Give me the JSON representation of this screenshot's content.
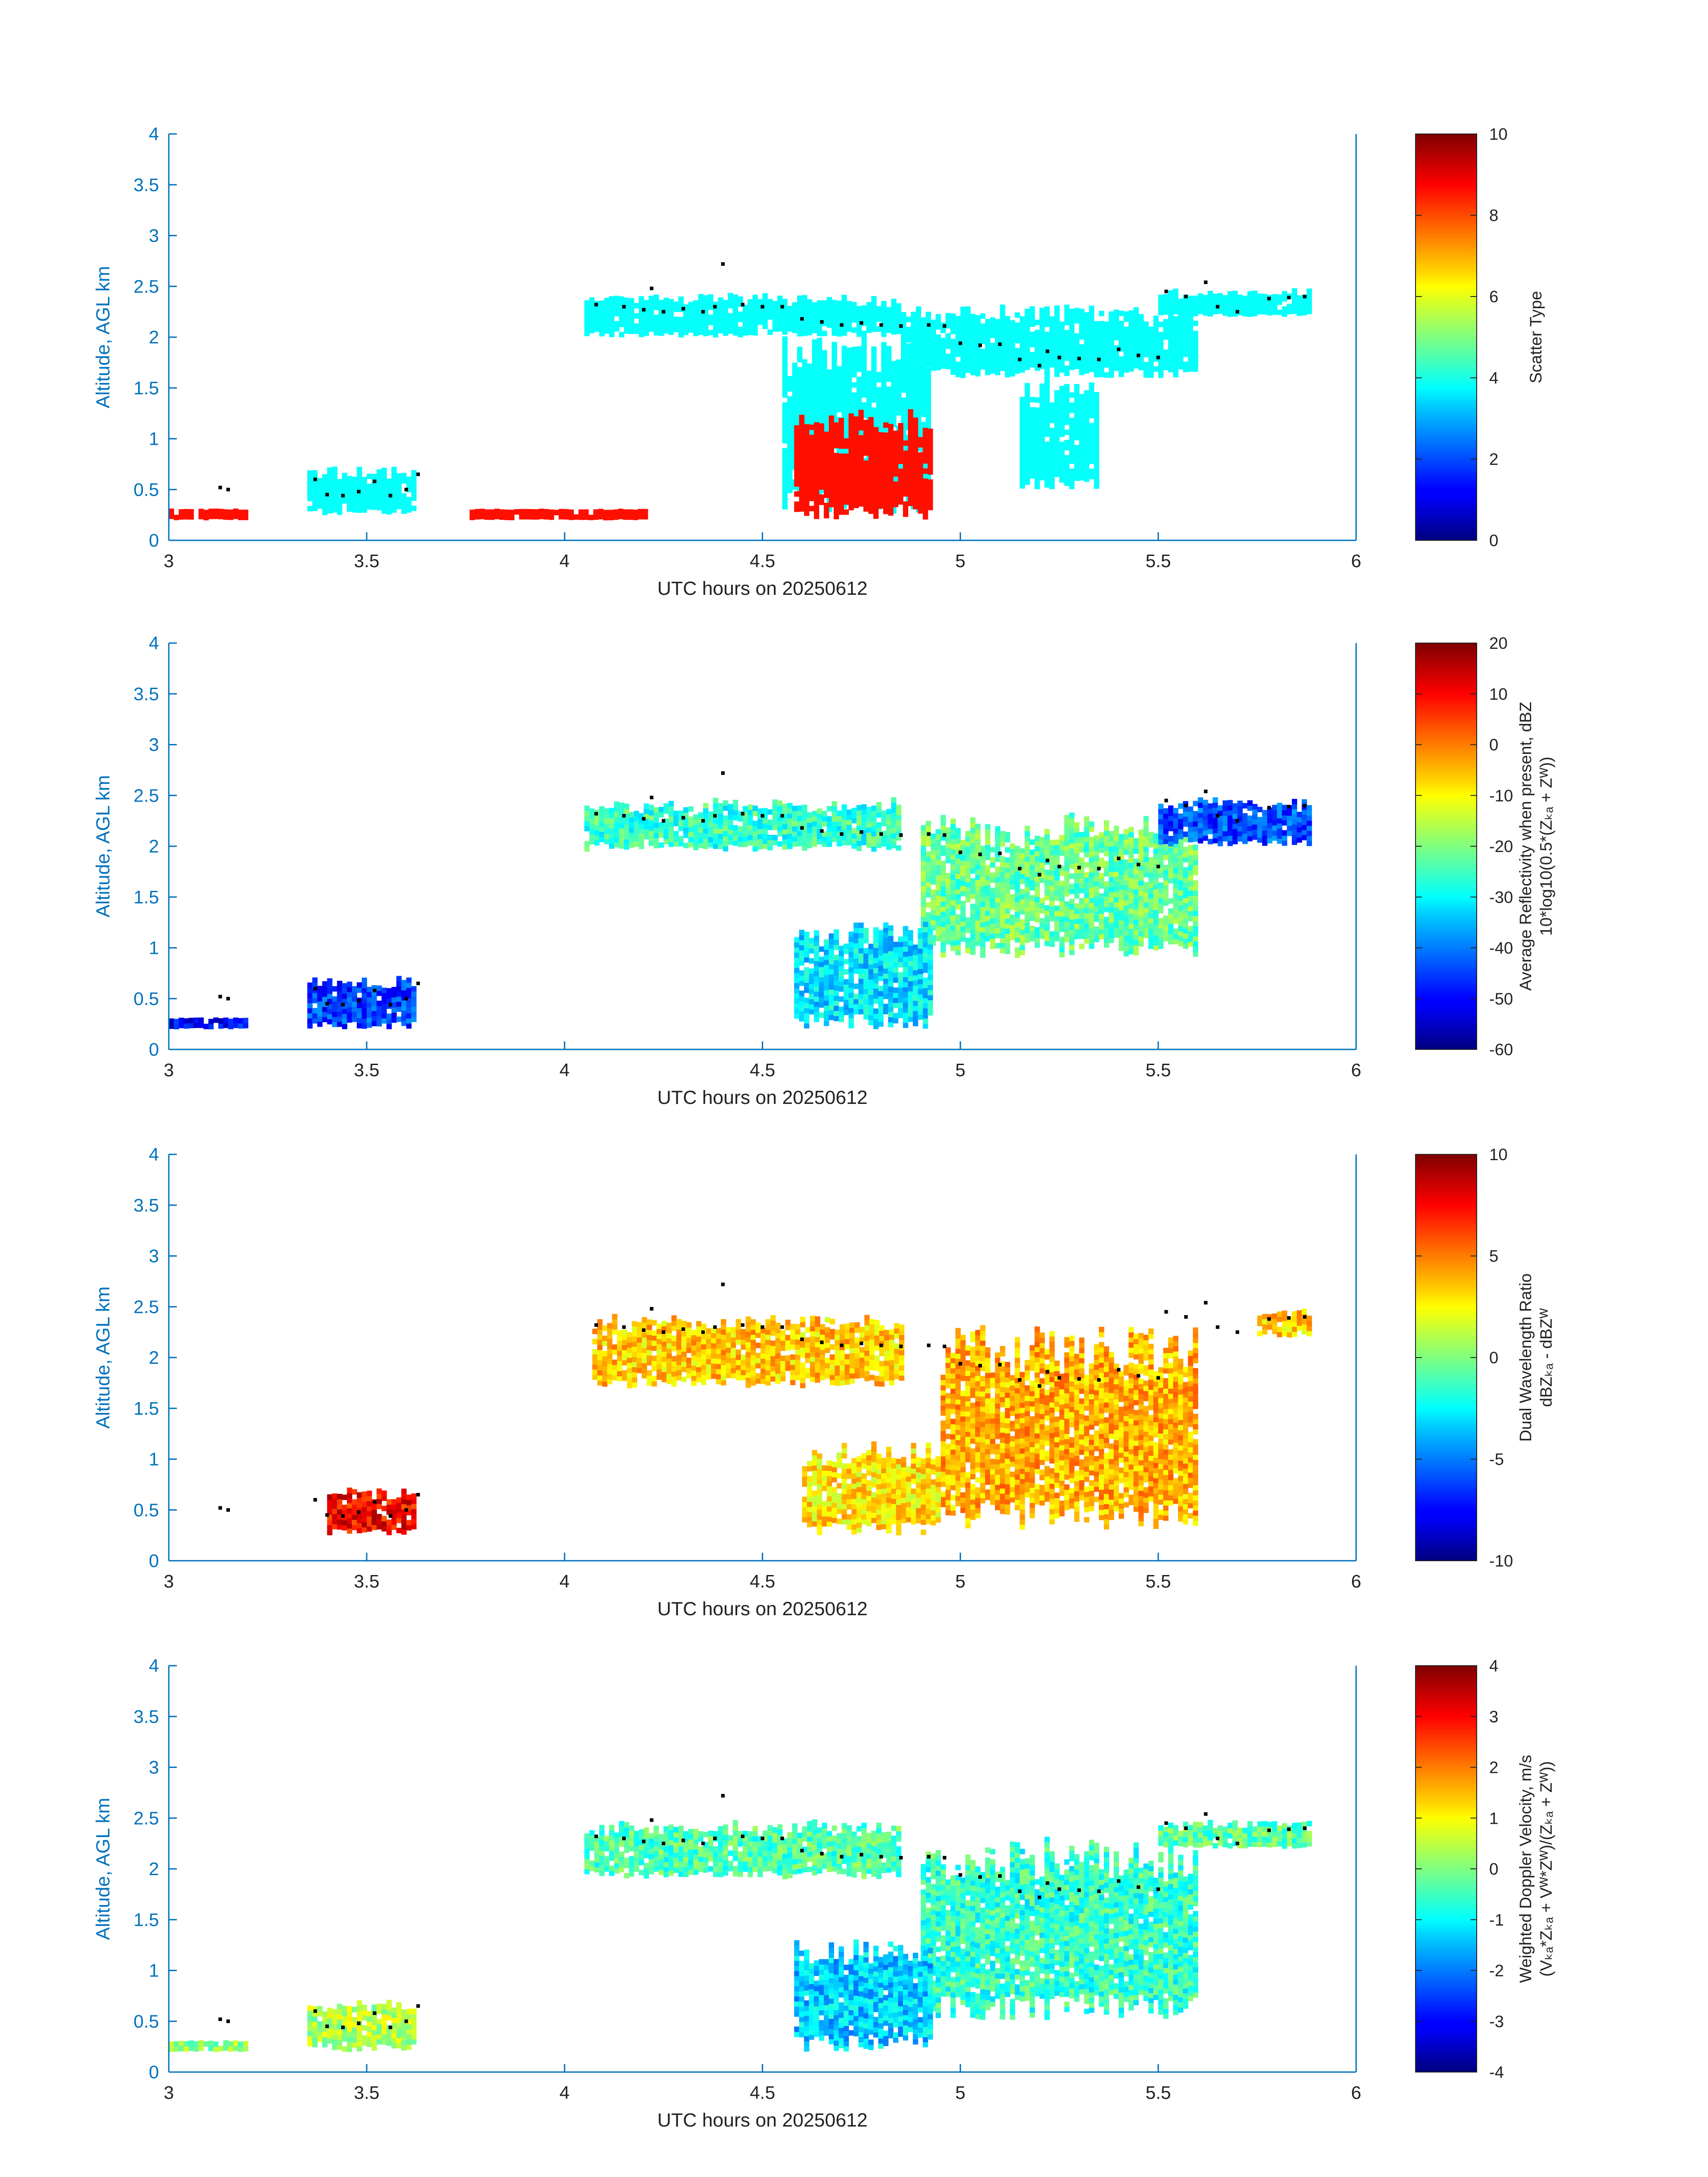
{
  "chart_data": [
    {
      "type": "heatmap",
      "id": "scatter_type",
      "xlabel": "UTC hours on 20250612",
      "ylabel": "Altitude, AGL km",
      "xlim": [
        3,
        6
      ],
      "ylim": [
        0,
        4
      ],
      "xticks": [
        "3",
        "3.5",
        "4",
        "4.5",
        "5",
        "5.5",
        "6"
      ],
      "yticks": [
        "0",
        "0.5",
        "1",
        "1.5",
        "2",
        "2.5",
        "3",
        "3.5",
        "4"
      ],
      "colorbar": {
        "label": [
          "Scatter Type"
        ],
        "range": [
          0,
          10
        ],
        "ticks": [
          "0",
          "2",
          "4",
          "6",
          "8",
          "10"
        ]
      },
      "fields": [
        {
          "kind": "cloud",
          "value": 3.8,
          "t0": 4.05,
          "t1": 4.85,
          "zbot": 2.0,
          "ztop": 2.4
        },
        {
          "kind": "cloud",
          "value": 3.8,
          "t0": 4.85,
          "t1": 5.6,
          "zbot": 1.6,
          "ztop": 2.3
        },
        {
          "kind": "cloud",
          "value": 3.8,
          "t0": 5.15,
          "t1": 5.35,
          "zbot": 0.5,
          "ztop": 1.6
        },
        {
          "kind": "cloud",
          "value": 3.8,
          "t0": 4.55,
          "t1": 4.92,
          "zbot": 0.25,
          "ztop": 2.0
        },
        {
          "kind": "cloud",
          "value": 3.8,
          "t0": 3.35,
          "t1": 3.62,
          "zbot": 0.25,
          "ztop": 0.7
        },
        {
          "kind": "cloud",
          "value": 8.6,
          "t0": 4.58,
          "t1": 4.93,
          "zbot": 0.2,
          "ztop": 1.25
        },
        {
          "kind": "cloud",
          "value": 8.6,
          "t0": 3.0,
          "t1": 3.2,
          "zbot": 0.2,
          "ztop": 0.3
        },
        {
          "kind": "cloud",
          "value": 8.6,
          "t0": 3.76,
          "t1": 4.2,
          "zbot": 0.2,
          "ztop": 0.28
        },
        {
          "kind": "cloud",
          "value": 3.8,
          "t0": 5.5,
          "t1": 5.88,
          "zbot": 2.2,
          "ztop": 2.45
        }
      ]
    },
    {
      "type": "heatmap",
      "id": "reflectivity",
      "xlabel": "UTC hours on 20250612",
      "ylabel": "Altitude, AGL km",
      "xlim": [
        3,
        6
      ],
      "ylim": [
        0,
        4
      ],
      "xticks": [
        "3",
        "3.5",
        "4",
        "4.5",
        "5",
        "5.5",
        "6"
      ],
      "yticks": [
        "0",
        "0.5",
        "1",
        "1.5",
        "2",
        "2.5",
        "3",
        "3.5",
        "4"
      ],
      "colorbar": {
        "label": [
          "Average Reflectivity when present, dBZ",
          "10*log10(0.5*(Zₖₐ + Zᵂ))"
        ],
        "range": [
          -60,
          20
        ],
        "ticks": [
          "-60",
          "-50",
          "-40",
          "-30",
          "-20",
          "-10",
          "0",
          "10",
          "20"
        ]
      },
      "fields": [
        {
          "kind": "cloud",
          "value": -26,
          "t0": 4.05,
          "t1": 4.85,
          "zbot": 1.95,
          "ztop": 2.45
        },
        {
          "kind": "cloud",
          "value": -22,
          "t0": 4.9,
          "t1": 5.6,
          "zbot": 0.9,
          "ztop": 2.3
        },
        {
          "kind": "cloud",
          "value": -32,
          "t0": 4.58,
          "t1": 4.93,
          "zbot": 0.2,
          "ztop": 1.25
        },
        {
          "kind": "cloud",
          "value": -45,
          "t0": 3.35,
          "t1": 3.62,
          "zbot": 0.2,
          "ztop": 0.7
        },
        {
          "kind": "cloud",
          "value": -50,
          "t0": 3.0,
          "t1": 3.2,
          "zbot": 0.2,
          "ztop": 0.3
        },
        {
          "kind": "cloud",
          "value": -44,
          "t0": 5.5,
          "t1": 5.88,
          "zbot": 2.0,
          "ztop": 2.45
        }
      ]
    },
    {
      "type": "heatmap",
      "id": "dual_wavelength_ratio",
      "xlabel": "UTC hours on 20250612",
      "ylabel": "Altitude, AGL km",
      "xlim": [
        3,
        6
      ],
      "ylim": [
        0,
        4
      ],
      "xticks": [
        "3",
        "3.5",
        "4",
        "4.5",
        "5",
        "5.5",
        "6"
      ],
      "yticks": [
        "0",
        "0.5",
        "1",
        "1.5",
        "2",
        "2.5",
        "3",
        "3.5",
        "4"
      ],
      "colorbar": {
        "label": [
          "Dual Wavelength Ratio",
          "dBZₖₐ - dBZᵂ"
        ],
        "range": [
          -10,
          10
        ],
        "ticks": [
          "-10",
          "-5",
          "0",
          "5",
          "10"
        ]
      },
      "fields": [
        {
          "kind": "cloud",
          "value": 3.5,
          "t0": 4.07,
          "t1": 4.85,
          "zbot": 1.7,
          "ztop": 2.4
        },
        {
          "kind": "cloud",
          "value": 4.0,
          "t0": 4.95,
          "t1": 5.6,
          "zbot": 0.3,
          "ztop": 2.3
        },
        {
          "kind": "cloud",
          "value": 3.0,
          "t0": 4.6,
          "t1": 4.95,
          "zbot": 0.25,
          "ztop": 1.15
        },
        {
          "kind": "cloud",
          "value": 7.5,
          "t0": 3.4,
          "t1": 3.62,
          "zbot": 0.25,
          "ztop": 0.7
        },
        {
          "kind": "cloud",
          "value": 3.5,
          "t0": 5.75,
          "t1": 5.88,
          "zbot": 2.2,
          "ztop": 2.45
        }
      ]
    },
    {
      "type": "heatmap",
      "id": "doppler_velocity",
      "xlabel": "UTC hours on 20250612",
      "ylabel": "Altitude, AGL km",
      "xlim": [
        3,
        6
      ],
      "ylim": [
        0,
        4
      ],
      "xticks": [
        "3",
        "3.5",
        "4",
        "4.5",
        "5",
        "5.5",
        "6"
      ],
      "yticks": [
        "0",
        "0.5",
        "1",
        "1.5",
        "2",
        "2.5",
        "3",
        "3.5",
        "4"
      ],
      "colorbar": {
        "label": [
          "Weighted Doppler Velocity, m/s",
          "(Vₖₐ*Zₖₐ + Vᵂ*Zᵂ)/(Zₖₐ + Zᵂ))"
        ],
        "range": [
          -4,
          4
        ],
        "ticks": [
          "-4",
          "-3",
          "-2",
          "-1",
          "0",
          "1",
          "2",
          "3",
          "4"
        ]
      },
      "fields": [
        {
          "kind": "cloud",
          "value": -0.4,
          "t0": 4.05,
          "t1": 4.85,
          "zbot": 1.9,
          "ztop": 2.45
        },
        {
          "kind": "cloud",
          "value": -0.6,
          "t0": 4.9,
          "t1": 5.6,
          "zbot": 0.5,
          "ztop": 2.3
        },
        {
          "kind": "cloud",
          "value": -1.4,
          "t0": 4.58,
          "t1": 4.93,
          "zbot": 0.2,
          "ztop": 1.3
        },
        {
          "kind": "cloud",
          "value": 0.4,
          "t0": 3.35,
          "t1": 3.62,
          "zbot": 0.2,
          "ztop": 0.7
        },
        {
          "kind": "cloud",
          "value": 0.2,
          "t0": 3.0,
          "t1": 3.2,
          "zbot": 0.2,
          "ztop": 0.3
        },
        {
          "kind": "cloud",
          "value": -0.3,
          "t0": 5.5,
          "t1": 5.88,
          "zbot": 2.2,
          "ztop": 2.45
        }
      ]
    }
  ],
  "overlay": {
    "color": "#000000",
    "description_values": [
      [
        3.13,
        0.52
      ],
      [
        3.15,
        0.5
      ],
      [
        3.37,
        0.6
      ],
      [
        3.4,
        0.45
      ],
      [
        3.44,
        0.44
      ],
      [
        3.48,
        0.48
      ],
      [
        3.52,
        0.58
      ],
      [
        3.56,
        0.44
      ],
      [
        3.6,
        0.5
      ],
      [
        3.63,
        0.65
      ],
      [
        4.08,
        2.32
      ],
      [
        4.15,
        2.3
      ],
      [
        4.2,
        2.27
      ],
      [
        4.22,
        2.48
      ],
      [
        4.25,
        2.25
      ],
      [
        4.3,
        2.28
      ],
      [
        4.35,
        2.25
      ],
      [
        4.38,
        2.3
      ],
      [
        4.4,
        2.72
      ],
      [
        4.45,
        2.32
      ],
      [
        4.5,
        2.3
      ],
      [
        4.55,
        2.3
      ],
      [
        4.6,
        2.18
      ],
      [
        4.65,
        2.15
      ],
      [
        4.7,
        2.12
      ],
      [
        4.75,
        2.14
      ],
      [
        4.8,
        2.12
      ],
      [
        4.85,
        2.11
      ],
      [
        4.92,
        2.12
      ],
      [
        4.96,
        2.11
      ],
      [
        5.0,
        1.94
      ],
      [
        5.05,
        1.92
      ],
      [
        5.1,
        1.93
      ],
      [
        5.15,
        1.78
      ],
      [
        5.2,
        1.72
      ],
      [
        5.22,
        1.86
      ],
      [
        5.25,
        1.8
      ],
      [
        5.3,
        1.79
      ],
      [
        5.35,
        1.78
      ],
      [
        5.4,
        1.88
      ],
      [
        5.45,
        1.82
      ],
      [
        5.5,
        1.8
      ],
      [
        5.52,
        2.45
      ],
      [
        5.57,
        2.4
      ],
      [
        5.62,
        2.54
      ],
      [
        5.65,
        2.3
      ],
      [
        5.7,
        2.25
      ],
      [
        5.78,
        2.38
      ],
      [
        5.83,
        2.39
      ],
      [
        5.87,
        2.4
      ]
    ]
  },
  "colors": {
    "axis": "#0072bd",
    "text": "#222222",
    "background": "#ffffff"
  }
}
